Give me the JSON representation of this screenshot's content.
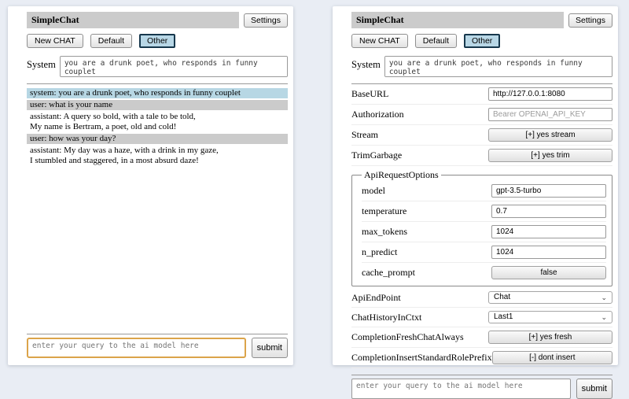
{
  "app": {
    "title": "SimpleChat",
    "settings_button": "Settings",
    "toolbar": {
      "new_chat": "New CHAT",
      "default": "Default",
      "other": "Other"
    },
    "system_label": "System",
    "system_prompt": "you are a drunk poet, who responds in funny couplet",
    "query_placeholder": "enter your query to the ai model here",
    "submit_label": "submit"
  },
  "chat": {
    "messages": [
      {
        "role": "system",
        "lines": [
          "system: you are a drunk poet, who responds in funny couplet"
        ]
      },
      {
        "role": "user",
        "lines": [
          "user: what is your name"
        ]
      },
      {
        "role": "assistant",
        "lines": [
          "assistant: A query so bold, with a tale to be told,",
          "My name is Bertram, a poet, old and cold!"
        ]
      },
      {
        "role": "user",
        "lines": [
          "user: how was your day?"
        ]
      },
      {
        "role": "assistant",
        "lines": [
          "assistant: My day was a haze, with a drink in my gaze,",
          "I stumbled and staggered, in a most absurd daze!"
        ]
      }
    ]
  },
  "settings_panel": {
    "base_url": {
      "label": "BaseURL",
      "value": "http://127.0.0.1:8080"
    },
    "authorization": {
      "label": "Authorization",
      "placeholder": "Bearer OPENAI_API_KEY"
    },
    "stream": {
      "label": "Stream",
      "button": "[+] yes stream"
    },
    "trim_garbage": {
      "label": "TrimGarbage",
      "button": "[+] yes trim"
    },
    "api_request_options": {
      "legend": "ApiRequestOptions",
      "model": {
        "label": "model",
        "value": "gpt-3.5-turbo"
      },
      "temperature": {
        "label": "temperature",
        "value": "0.7"
      },
      "max_tokens": {
        "label": "max_tokens",
        "value": "1024"
      },
      "n_predict": {
        "label": "n_predict",
        "value": "1024"
      },
      "cache_prompt": {
        "label": "cache_prompt",
        "button": "false"
      }
    },
    "api_endpoint": {
      "label": "ApiEndPoint",
      "selected": "Chat"
    },
    "chat_history_in_ctxt": {
      "label": "ChatHistoryInCtxt",
      "selected": "Last1"
    },
    "completion_fresh_chat_always": {
      "label": "CompletionFreshChatAlways",
      "button": "[+] yes fresh"
    },
    "completion_insert_standard_role_prefix": {
      "label": "CompletionInsertStandardRolePrefix",
      "button": "[-] dont insert"
    }
  },
  "icons": {
    "select_chevron": "chevron-down-icon"
  },
  "colors": {
    "page_background": "#e9edf4",
    "title_bar": "#cbcbcb",
    "active_tab_bg": "#b8d7e6",
    "active_tab_border": "#17384d",
    "system_msg_bg": "#b7d7e4",
    "user_msg_bg": "#cbcbcb",
    "focused_input_border": "#dba44a"
  }
}
